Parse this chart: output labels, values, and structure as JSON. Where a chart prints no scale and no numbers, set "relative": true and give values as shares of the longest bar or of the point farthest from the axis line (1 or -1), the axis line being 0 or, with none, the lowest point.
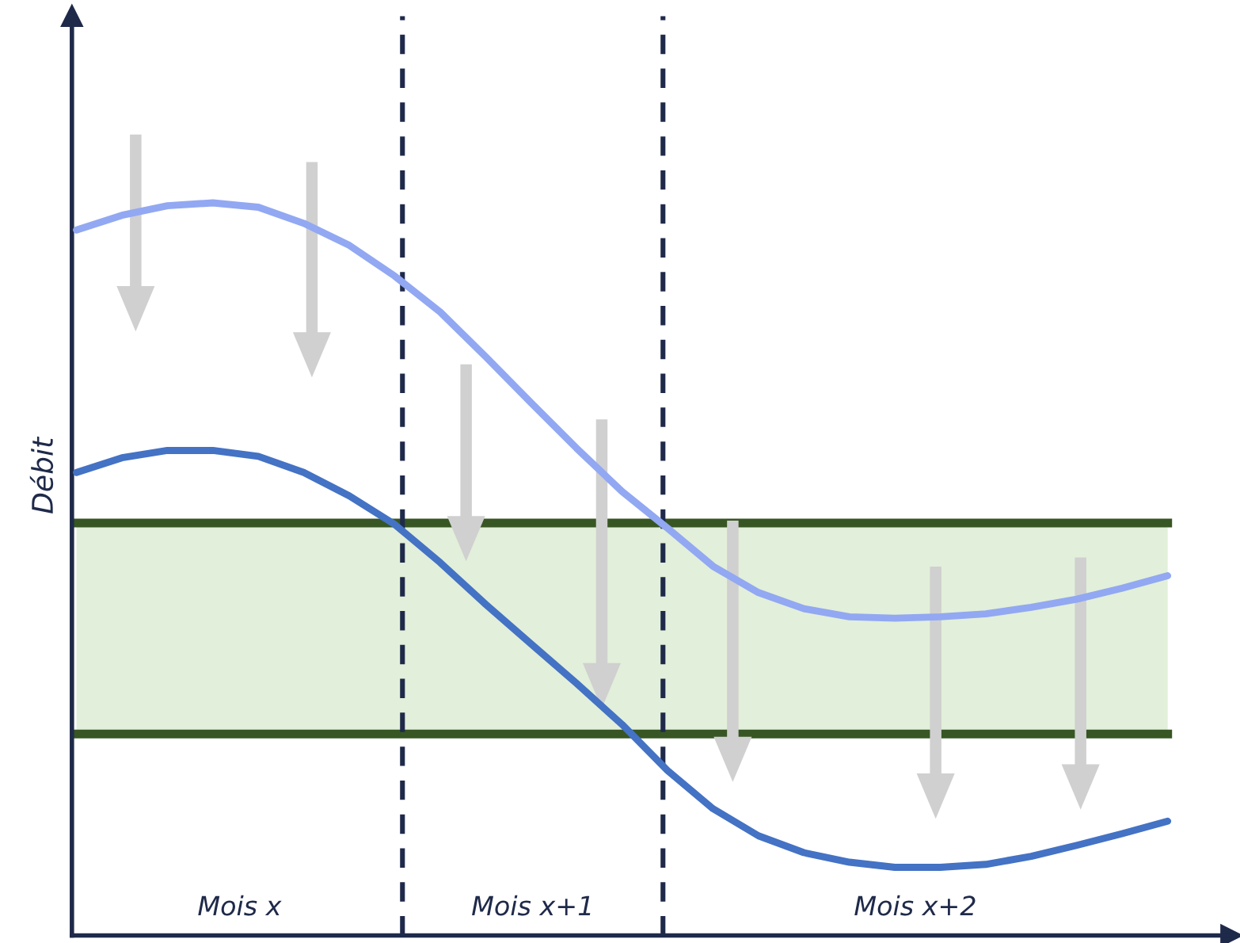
{
  "chart_data": {
    "type": "line",
    "relative": true,
    "ylabel": "Débit",
    "categories": [
      null,
      null,
      null,
      null,
      null,
      null,
      null,
      null,
      null,
      null,
      null,
      null,
      null,
      null,
      null,
      null,
      null,
      null,
      null,
      null,
      null,
      null,
      null,
      null,
      null
    ],
    "series": [
      {
        "color": "#92a8f2",
        "values": [
          0.963,
          0.983,
          0.996,
          1.0,
          0.994,
          0.972,
          0.942,
          0.9,
          0.851,
          0.79,
          0.727,
          0.665,
          0.606,
          0.556,
          0.504,
          0.468,
          0.446,
          0.435,
          0.433,
          0.435,
          0.439,
          0.448,
          0.459,
          0.474,
          0.491
        ]
      },
      {
        "color": "#4472c4",
        "values": [
          0.632,
          0.652,
          0.662,
          0.662,
          0.654,
          0.632,
          0.6,
          0.561,
          0.509,
          0.452,
          0.398,
          0.344,
          0.288,
          0.225,
          0.173,
          0.136,
          0.113,
          0.1,
          0.093,
          0.093,
          0.097,
          0.108,
          0.123,
          0.139,
          0.156
        ]
      }
    ],
    "bands": [
      {
        "axis": "y",
        "from": 0.275,
        "to": 0.563,
        "color": "#e2efda"
      }
    ],
    "ref_lines": [
      {
        "axis": "y",
        "value": 0.275,
        "color": "#375623",
        "line_style": "solid"
      },
      {
        "axis": "y",
        "value": 0.563,
        "color": "#375623",
        "line_style": "solid"
      }
    ],
    "annotations": [
      "Mois x",
      "Mois x+1",
      "Mois x+2"
    ]
  }
}
